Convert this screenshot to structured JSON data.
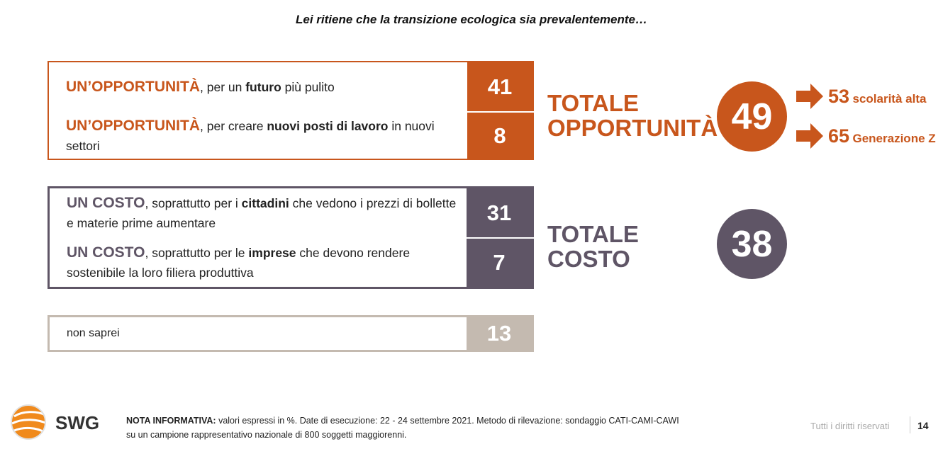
{
  "title": "Lei ritiene che la transizione ecologica sia prevalentemente…",
  "colors": {
    "opportunity": "#c8561c",
    "cost": "#5f5566",
    "unknown": "#c4bab0"
  },
  "chart_data": {
    "type": "bar",
    "groups": [
      {
        "name": "opportunity",
        "items": [
          {
            "lead": "UN’OPPORTUNITÀ",
            "p1": ", per un ",
            "b1": "futuro",
            "p2": " più pulito",
            "value": 41
          },
          {
            "lead": "UN’OPPORTUNITÀ",
            "p1": ", per creare ",
            "b1": "nuovi posti di lavoro",
            "p2": " in nuovi settori",
            "value": 8
          }
        ],
        "total_line1": "TOTALE",
        "total_line2": "OPPORTUNITÀ",
        "total_value": 49
      },
      {
        "name": "cost",
        "items": [
          {
            "lead": "UN COSTO",
            "p1": ", soprattutto per i ",
            "b1": "cittadini",
            "p2": " che vedono i prezzi di bollette e materie prime aumentare",
            "value": 31
          },
          {
            "lead": "UN COSTO",
            "p1": ", soprattutto per le ",
            "b1": "imprese",
            "p2": " che devono rendere sostenibile la loro filiera produttiva",
            "value": 7
          }
        ],
        "total_line1": "TOTALE",
        "total_line2": "COSTO",
        "total_value": 38
      },
      {
        "name": "unknown",
        "items": [
          {
            "text": "non saprei",
            "value": 13
          }
        ]
      }
    ],
    "callouts": [
      {
        "value": 53,
        "label": "scolarità alta"
      },
      {
        "value": 65,
        "label": "Generazione Z"
      }
    ]
  },
  "footer": {
    "logo_text": "SWG",
    "note_label": "NOTA INFORMATIVA:",
    "note_line1": " valori espressi in %. Date di esecuzione: 22 - 24 settembre 2021. Metodo di rilevazione: sondaggio CATI-CAMI-CAWI",
    "note_line2": "su un campione rappresentativo nazionale di 800 soggetti maggiorenni.",
    "rights": "Tutti i diritti riservati",
    "page": "14"
  }
}
